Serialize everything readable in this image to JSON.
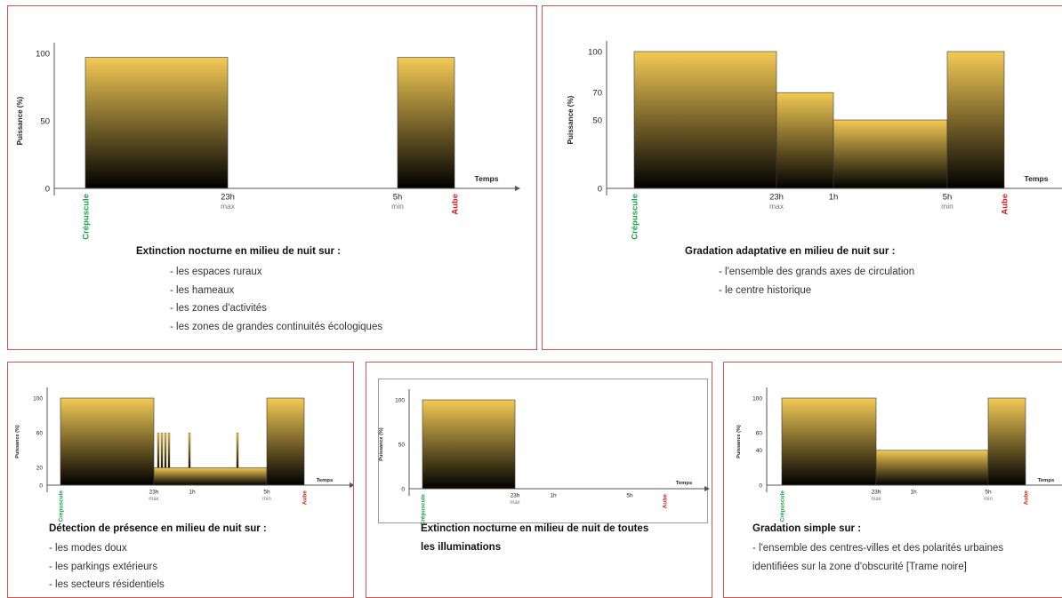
{
  "colors": {
    "border": "#d9534f",
    "bar_top": "#f3ca55",
    "bar_bottom": "#000000",
    "dusk": "#1aa24a",
    "dawn": "#e02020",
    "axis": "#555555"
  },
  "chart_data": [
    {
      "type": "area",
      "ylabel": "Puissance (%)",
      "xlabel": "Temps",
      "yticks": [
        "0",
        "50",
        "100"
      ],
      "ylim": [
        0,
        100
      ],
      "dusk_label": "Crépuscule",
      "dawn_label": "Aube",
      "xtick_labels": [
        {
          "label": "23h",
          "sub": "max"
        },
        {
          "label": "5h",
          "sub": "min"
        }
      ],
      "segments": [
        {
          "from": "Crépuscule",
          "to": "23h",
          "power": 97
        },
        {
          "from": "5h",
          "to": "Aube",
          "power": 97
        }
      ],
      "title": "Extinction nocturne en milieu de nuit sur :",
      "items": [
        "- les espaces ruraux",
        "- les hameaux",
        "- les zones d'activités",
        "- les zones de grandes continuités écologiques"
      ]
    },
    {
      "type": "area",
      "ylabel": "Puissance (%)",
      "xlabel": "Temps",
      "yticks": [
        "0",
        "50",
        "70",
        "100"
      ],
      "ylim": [
        0,
        100
      ],
      "dusk_label": "Crépuscule",
      "dawn_label": "Aube",
      "xtick_labels": [
        {
          "label": "23h",
          "sub": "max"
        },
        {
          "label": "1h",
          "sub": ""
        },
        {
          "label": "5h",
          "sub": "min"
        }
      ],
      "segments": [
        {
          "from": "Crépuscule",
          "to": "23h",
          "power": 100
        },
        {
          "from": "23h",
          "to": "1h",
          "power": 70
        },
        {
          "from": "1h",
          "to": "5h",
          "power": 50
        },
        {
          "from": "5h",
          "to": "Aube",
          "power": 100
        }
      ],
      "title": "Gradation adaptative en milieu de nuit sur :",
      "items": [
        "- l'ensemble des grands axes de circulation",
        "- le centre historique"
      ]
    },
    {
      "type": "area",
      "ylabel": "Puissance (%)",
      "xlabel": "Temps",
      "yticks": [
        "0",
        "20",
        "60",
        "100"
      ],
      "ylim": [
        0,
        100
      ],
      "dusk_label": "Crépuscule",
      "dawn_label": "Aube",
      "xtick_labels": [
        {
          "label": "23h",
          "sub": "max"
        },
        {
          "label": "1h",
          "sub": ""
        },
        {
          "label": "5h",
          "sub": "min"
        }
      ],
      "segments": [
        {
          "from": "Crépuscule",
          "to": "23h",
          "power": 100
        },
        {
          "from": "23h",
          "to": "5h",
          "power": 20
        },
        {
          "from": "5h",
          "to": "Aube",
          "power": 100
        }
      ],
      "presence_spikes": [
        60,
        60,
        60,
        60,
        60,
        60
      ],
      "title": "Détection de présence en milieu de nuit sur :",
      "items": [
        "- les modes doux",
        "- les parkings extérieurs",
        "- les secteurs résidentiels"
      ]
    },
    {
      "type": "area",
      "ylabel": "Puissance (%)",
      "xlabel": "Temps",
      "yticks": [
        "0",
        "50",
        "100"
      ],
      "ylim": [
        0,
        100
      ],
      "dusk_label": "Crépuscule",
      "dawn_label": "Aube",
      "xtick_labels": [
        {
          "label": "23h",
          "sub": "max"
        },
        {
          "label": "1h",
          "sub": ""
        },
        {
          "label": "5h",
          "sub": ""
        }
      ],
      "segments": [
        {
          "from": "Crépuscule",
          "to": "23h",
          "power": 100
        }
      ],
      "title": "Extinction nocturne en milieu de nuit de toutes",
      "title2": "les illuminations",
      "items": []
    },
    {
      "type": "area",
      "ylabel": "Puissance (%)",
      "xlabel": "Temps",
      "yticks": [
        "0",
        "40",
        "60",
        "100"
      ],
      "ylim": [
        0,
        100
      ],
      "dusk_label": "Crépuscule",
      "dawn_label": "Aube",
      "xtick_labels": [
        {
          "label": "23h",
          "sub": "max"
        },
        {
          "label": "1h",
          "sub": ""
        },
        {
          "label": "5h",
          "sub": "min"
        }
      ],
      "segments": [
        {
          "from": "Crépuscule",
          "to": "23h",
          "power": 100
        },
        {
          "from": "23h",
          "to": "5h",
          "power": 40
        },
        {
          "from": "5h",
          "to": "Aube",
          "power": 100
        }
      ],
      "title": "Gradation simple sur :",
      "items": [
        "- l'ensemble des centres-villes et des polarités urbaines",
        "identifiées sur la zone d'obscurité [Trame noire]"
      ]
    }
  ]
}
